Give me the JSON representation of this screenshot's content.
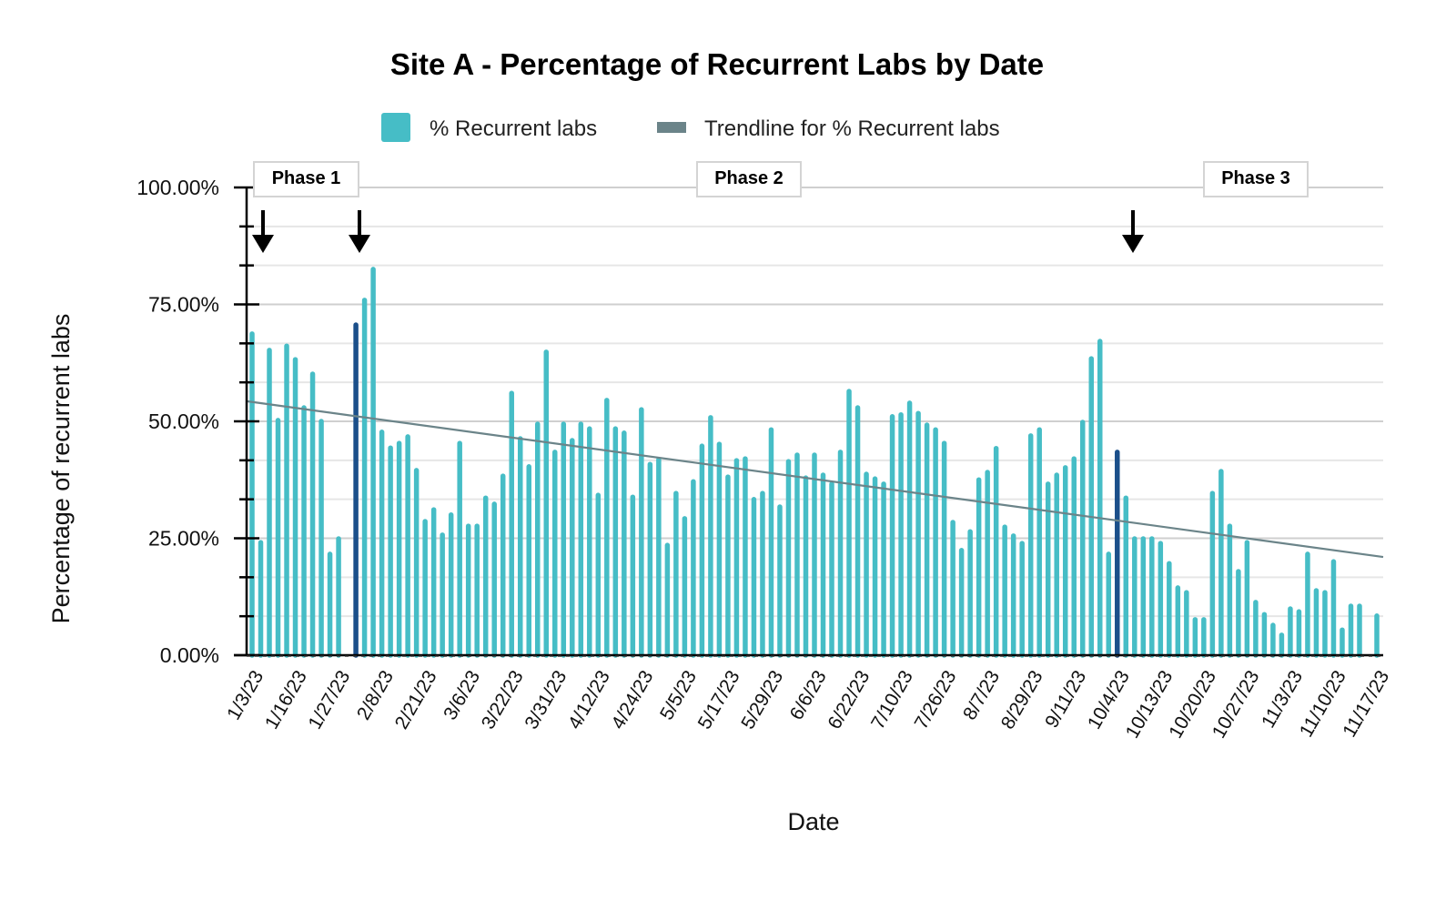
{
  "chart_data": {
    "type": "bar",
    "title": "Site A - Percentage of Recurrent Labs by Date",
    "xlabel": "Date",
    "ylabel": "Percentage of recurrent labs",
    "ylim": [
      0,
      100
    ],
    "y_ticks": [
      "0.00%",
      "25.00%",
      "50.00%",
      "75.00%",
      "100.00%"
    ],
    "y_tick_values": [
      0,
      25,
      50,
      75,
      100
    ],
    "grid": true,
    "legend": {
      "placement": "top",
      "entries": [
        {
          "label": "% Recurrent labs",
          "color": "#46BDC6"
        },
        {
          "label": "Trendline for % Recurrent labs",
          "color": "#6B8489"
        }
      ]
    },
    "x_tick_labels": [
      "1/3/23",
      "1/16/23",
      "1/27/23",
      "2/8/23",
      "2/21/23",
      "3/6/23",
      "3/22/23",
      "3/31/23",
      "4/12/23",
      "4/24/23",
      "5/5/23",
      "5/17/23",
      "5/29/23",
      "6/6/23",
      "6/22/23",
      "7/10/23",
      "7/26/23",
      "8/7/23",
      "8/29/23",
      "9/11/23",
      "10/4/23",
      "10/13/23",
      "10/20/23",
      "10/27/23",
      "11/3/23",
      "11/10/23",
      "11/17/23"
    ],
    "series": [
      {
        "name": "% Recurrent labs",
        "color": "#46BDC6",
        "highlight_color": "#1B4F8A",
        "highlight_indices": [
          12,
          100
        ],
        "values": [
          69.1,
          24.5,
          65.6,
          50.6,
          66.5,
          63.6,
          53.3,
          60.5,
          50.4,
          22.0,
          25.3,
          null,
          71.0,
          76.3,
          82.9,
          48.1,
          44.7,
          45.7,
          47.1,
          39.9,
          29.0,
          31.5,
          26.1,
          30.4,
          45.7,
          28.0,
          28.0,
          34.0,
          32.7,
          38.7,
          56.4,
          46.7,
          40.7,
          49.8,
          65.2,
          43.8,
          49.8,
          46.3,
          49.8,
          48.8,
          34.6,
          54.9,
          48.8,
          47.9,
          34.2,
          52.9,
          41.2,
          42.2,
          23.9,
          35.0,
          29.6,
          37.5,
          45.1,
          51.2,
          45.5,
          38.5,
          42.0,
          42.4,
          33.7,
          35.0,
          48.6,
          32.1,
          41.8,
          43.2,
          38.3,
          43.2,
          38.9,
          37.0,
          43.8,
          56.8,
          53.3,
          39.1,
          38.1,
          37.0,
          51.4,
          51.8,
          54.3,
          52.1,
          49.6,
          48.6,
          45.7,
          28.8,
          22.8,
          26.8,
          37.9,
          39.5,
          44.6,
          27.8,
          25.9,
          24.3,
          47.3,
          48.6,
          37.0,
          38.9,
          40.5,
          42.4,
          50.2,
          63.8,
          67.5,
          22.0,
          43.8,
          34.0,
          25.3,
          25.3,
          25.3,
          24.3,
          20.0,
          14.8,
          13.8,
          8.0,
          8.0,
          35.0,
          39.7,
          28.0,
          18.3,
          24.5,
          11.7,
          9.1,
          6.8,
          4.7,
          10.3,
          9.7,
          22.0,
          14.2,
          13.8,
          20.4,
          5.8,
          10.9,
          10.9,
          null,
          8.8
        ]
      },
      {
        "name": "Trendline for % Recurrent labs",
        "color": "#6B8489",
        "type": "line",
        "start_value": 54.3,
        "end_value": 21.0
      }
    ],
    "annotations": [
      {
        "label": "Phase 1"
      },
      {
        "label": "Phase 2"
      },
      {
        "label": "Phase 3"
      }
    ],
    "arrow_markers": [
      "1/3/23",
      "2/8/23",
      "10/4/23"
    ]
  }
}
